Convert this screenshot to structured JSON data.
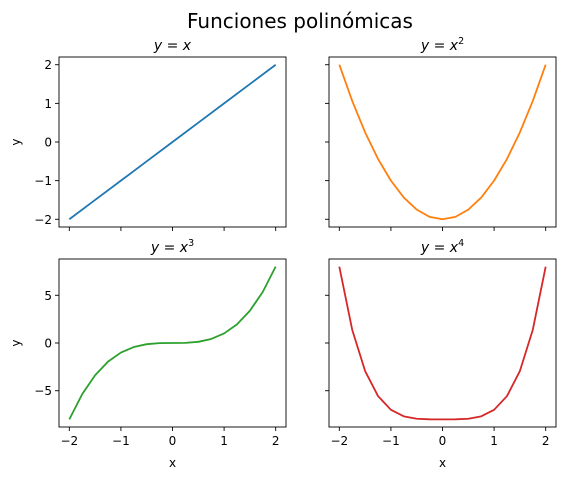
{
  "figure": {
    "suptitle": "Funciones polinómicas"
  },
  "chart_data": [
    {
      "type": "line",
      "title": "y = x",
      "title_base": "y = x",
      "title_exp": "",
      "xlabel": "",
      "ylabel": "y",
      "color": "#1f77b4",
      "xlim": [
        -2.2,
        2.2
      ],
      "ylim": [
        -2.2,
        2.2
      ],
      "xticks": [
        -2,
        -1,
        0,
        1,
        2
      ],
      "yticks": [
        -2,
        -1,
        0,
        1,
        2
      ],
      "ytick_labels": [
        "−2",
        "−1",
        "0",
        "1",
        "2"
      ],
      "x": [
        -2.0,
        -1.5,
        -1.0,
        -0.5,
        0.0,
        0.5,
        1.0,
        1.5,
        2.0
      ],
      "y": [
        -2.0,
        -1.5,
        -1.0,
        -0.5,
        0.0,
        0.5,
        1.0,
        1.5,
        2.0
      ]
    },
    {
      "type": "line",
      "title": "y = x^2",
      "title_base": "y = x",
      "title_exp": "2",
      "xlabel": "",
      "ylabel": "",
      "color": "#ff7f0e",
      "xlim": [
        -2.2,
        2.2
      ],
      "ylim": [
        -2.2,
        2.2
      ],
      "xticks": [
        -2,
        -1,
        0,
        1,
        2
      ],
      "yticks": [
        -2,
        -1,
        0,
        1,
        2
      ],
      "ytick_labels": [],
      "x": [
        -2.0,
        -1.75,
        -1.5,
        -1.25,
        -1.0,
        -0.75,
        -0.5,
        -0.25,
        0.0,
        0.25,
        0.5,
        0.75,
        1.0,
        1.25,
        1.5,
        1.75,
        2.0
      ],
      "y": [
        2.0,
        1.0625,
        0.25,
        -0.4375,
        -1.0,
        -1.4375,
        -1.75,
        -1.9375,
        -2.0,
        -1.9375,
        -1.75,
        -1.4375,
        -1.0,
        -0.4375,
        0.25,
        1.0625,
        2.0
      ]
    },
    {
      "type": "line",
      "title": "y = x^3",
      "title_base": "y = x",
      "title_exp": "3",
      "xlabel": "x",
      "ylabel": "y",
      "color": "#2ca02c",
      "xlim": [
        -2.2,
        2.2
      ],
      "ylim": [
        -8.8,
        8.8
      ],
      "xticks": [
        -2,
        -1,
        0,
        1,
        2
      ],
      "xtick_labels": [
        "−2",
        "−1",
        "0",
        "1",
        "2"
      ],
      "yticks": [
        -5,
        0,
        5
      ],
      "ytick_labels": [
        "−5",
        "0",
        "5"
      ],
      "x": [
        -2.0,
        -1.75,
        -1.5,
        -1.25,
        -1.0,
        -0.75,
        -0.5,
        -0.25,
        0.0,
        0.25,
        0.5,
        0.75,
        1.0,
        1.25,
        1.5,
        1.75,
        2.0
      ],
      "y": [
        -8.0,
        -5.359,
        -3.375,
        -1.953,
        -1.0,
        -0.422,
        -0.125,
        -0.016,
        0.0,
        0.016,
        0.125,
        0.422,
        1.0,
        1.953,
        3.375,
        5.359,
        8.0
      ]
    },
    {
      "type": "line",
      "title": "y = x^4",
      "title_base": "y = x",
      "title_exp": "4",
      "xlabel": "x",
      "ylabel": "",
      "color": "#d62728",
      "xlim": [
        -2.2,
        2.2
      ],
      "ylim": [
        -8.8,
        8.8
      ],
      "xticks": [
        -2,
        -1,
        0,
        1,
        2
      ],
      "xtick_labels": [
        "−2",
        "−1",
        "0",
        "1",
        "2"
      ],
      "yticks": [
        -5,
        0,
        5
      ],
      "ytick_labels": [],
      "x": [
        -2.0,
        -1.75,
        -1.5,
        -1.25,
        -1.0,
        -0.75,
        -0.5,
        -0.25,
        0.0,
        0.25,
        0.5,
        0.75,
        1.0,
        1.25,
        1.5,
        1.75,
        2.0
      ],
      "y": [
        8.0,
        1.379,
        -2.938,
        -5.559,
        -7.0,
        -7.684,
        -7.938,
        -7.996,
        -8.0,
        -7.996,
        -7.938,
        -7.684,
        -7.0,
        -5.559,
        -2.938,
        1.379,
        8.0
      ]
    }
  ]
}
